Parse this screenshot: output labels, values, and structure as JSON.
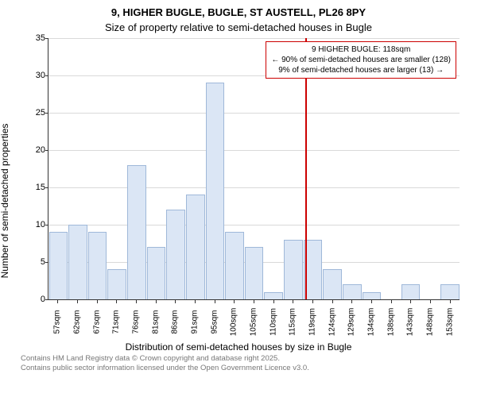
{
  "title": "9, HIGHER BUGLE, BUGLE, ST AUSTELL, PL26 8PY",
  "subtitle": "Size of property relative to semi-detached houses in Bugle",
  "ylabel": "Number of semi-detached properties",
  "xlabel": "Distribution of semi-detached houses by size in Bugle",
  "footer1": "Contains HM Land Registry data © Crown copyright and database right 2025.",
  "footer2": "Contains public sector information licensed under the Open Government Licence v3.0.",
  "chart": {
    "type": "histogram",
    "ylim": [
      0,
      35
    ],
    "ytick_step": 5,
    "bar_fill": "#dbe6f5",
    "bar_stroke": "#9fb8d9",
    "grid_color": "#d9d9d9",
    "axis_color": "#333333",
    "background": "#ffffff",
    "marker_color": "#cc0000",
    "x_categories": [
      "57sqm",
      "62sqm",
      "67sqm",
      "71sqm",
      "76sqm",
      "81sqm",
      "86sqm",
      "91sqm",
      "95sqm",
      "100sqm",
      "105sqm",
      "110sqm",
      "115sqm",
      "119sqm",
      "124sqm",
      "129sqm",
      "134sqm",
      "138sqm",
      "143sqm",
      "148sqm",
      "153sqm"
    ],
    "values": [
      9,
      10,
      9,
      4,
      18,
      7,
      12,
      14,
      29,
      9,
      7,
      1,
      8,
      8,
      4,
      2,
      1,
      0,
      2,
      0,
      2
    ],
    "marker_position_pct": 62.5
  },
  "callout": {
    "line1": "9 HIGHER BUGLE: 118sqm",
    "line2": "← 90% of semi-detached houses are smaller (128)",
    "line3": "9% of semi-detached houses are larger (13) →"
  },
  "fonts": {
    "title_size": 13,
    "label_size": 12,
    "tick_size": 11,
    "callout_size": 10,
    "footer_size": 9.5
  }
}
